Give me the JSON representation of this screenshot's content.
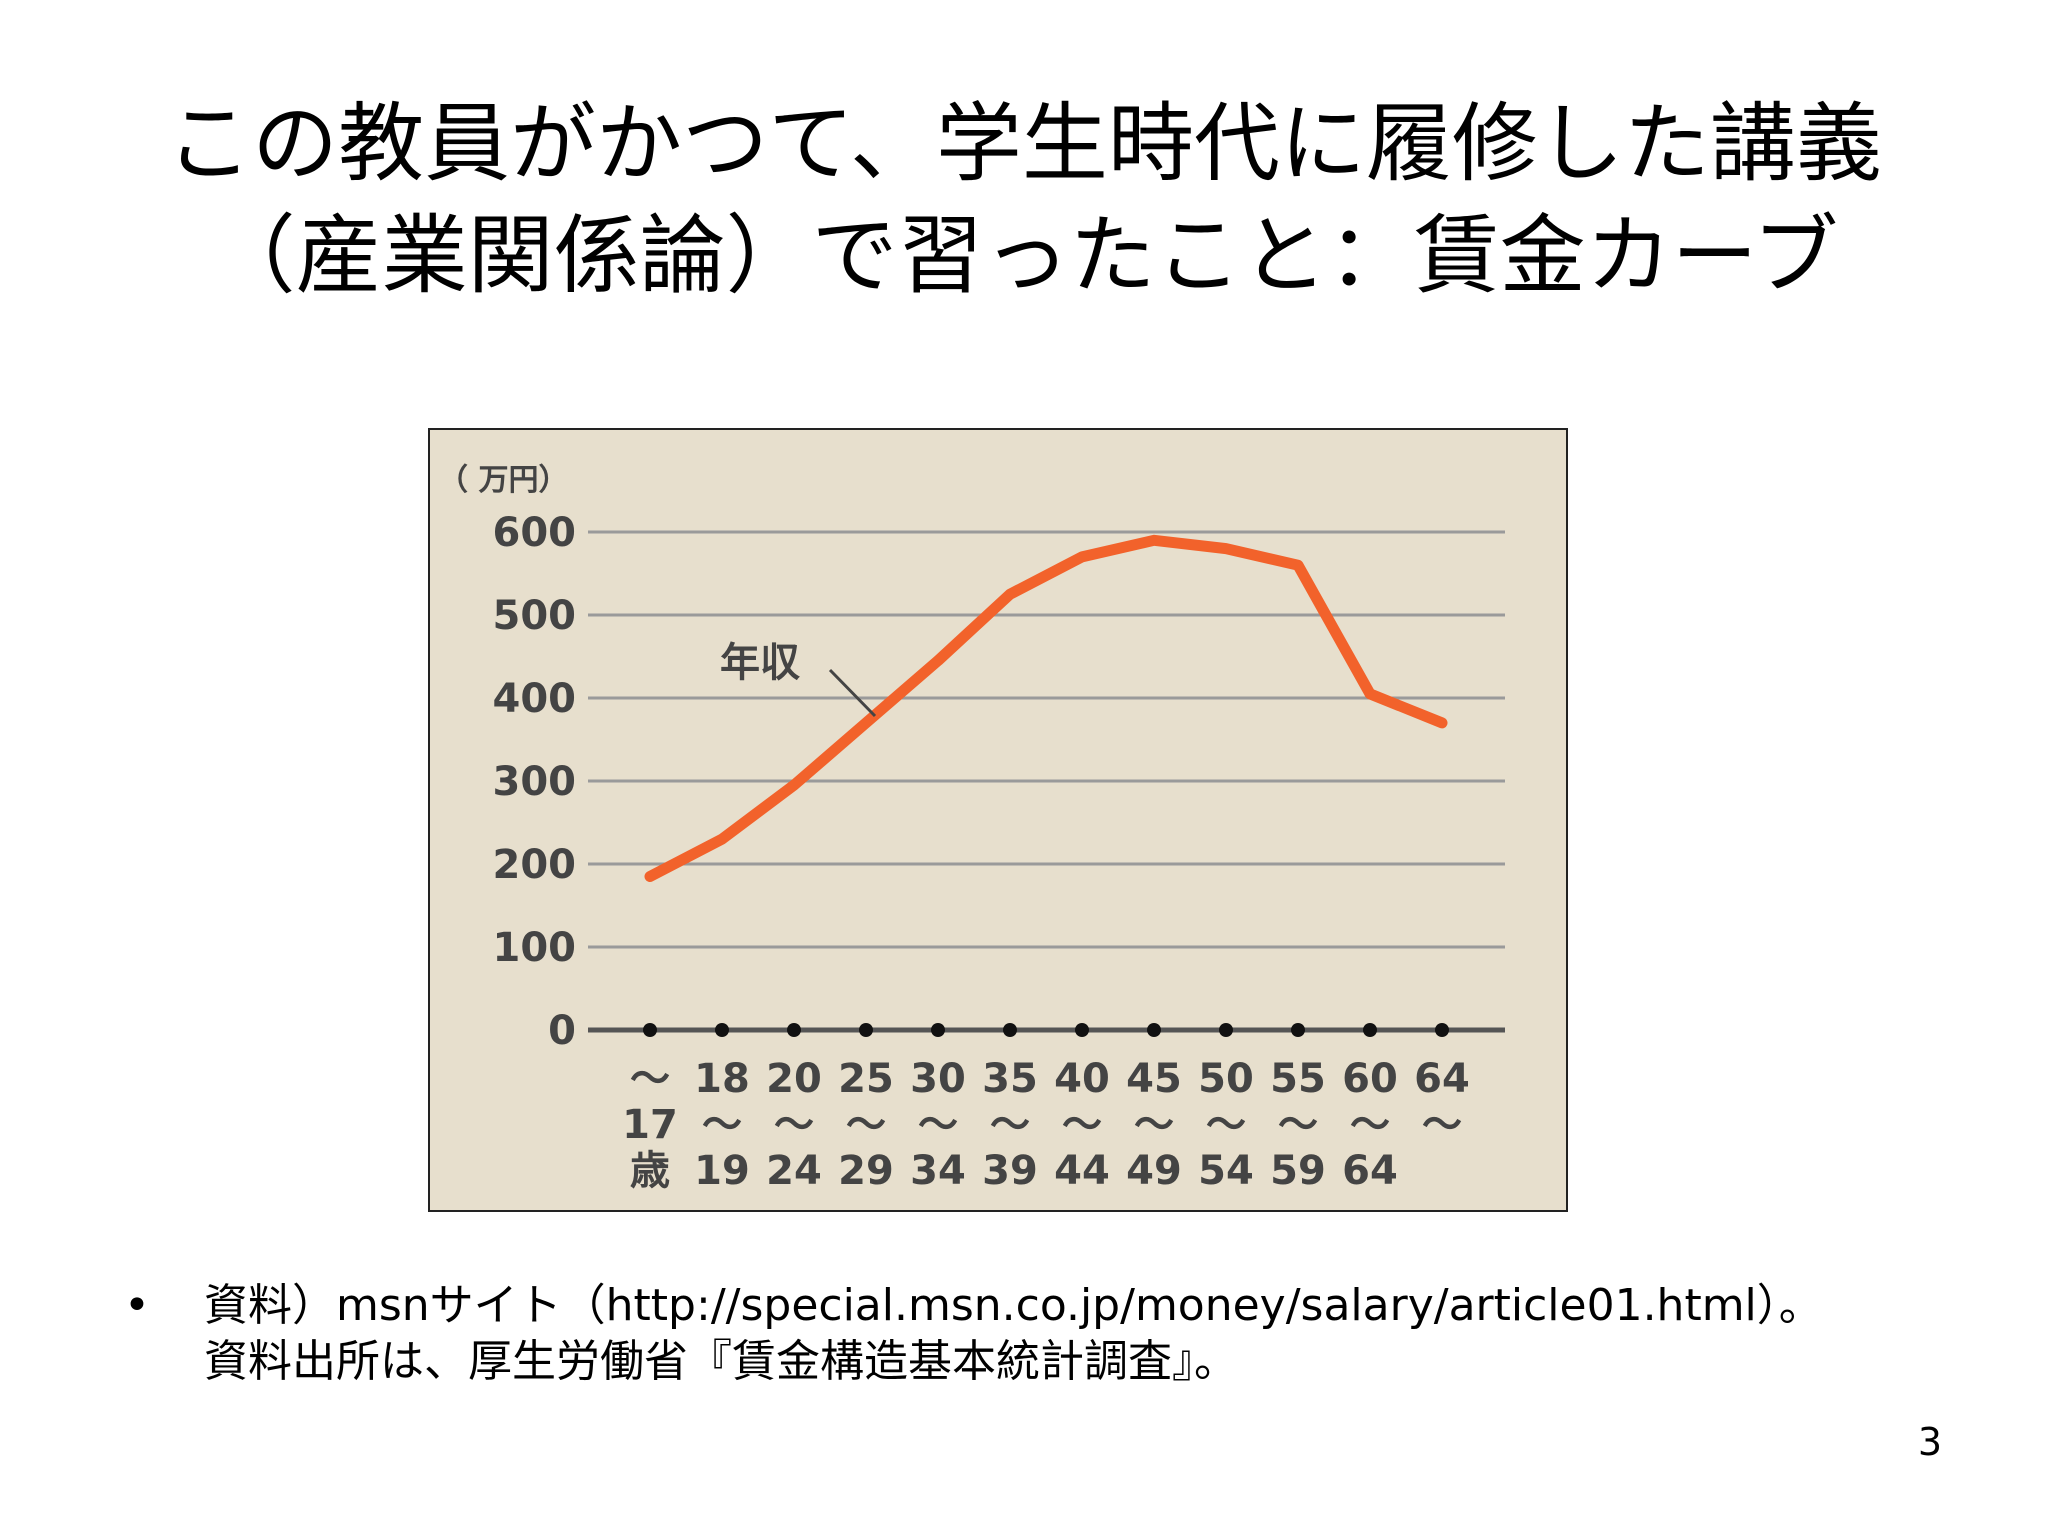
{
  "slide": {
    "title_lines": [
      "この教員がかつて、学生時代に履修した講義",
      "（産業関係論）で習ったこと：賃金カーブ"
    ],
    "bullet": "•",
    "note_lines": [
      "資料）msnサイト（http://special.msn.co.jp/money/salary/article01.html）。",
      "資料出所は、厚生労働省『賃金構造基本統計調査』。"
    ],
    "page_number": "3"
  },
  "chart_data": {
    "type": "line",
    "unit_label": "（ 万円）",
    "annotation": "年収",
    "yticks": [
      "0",
      "100",
      "200",
      "300",
      "400",
      "500",
      "600"
    ],
    "ylim": [
      0,
      600
    ],
    "grid": true,
    "categories": [
      [
        "",
        "〜",
        "17",
        "歳"
      ],
      [
        "18",
        "〜",
        "19"
      ],
      [
        "20",
        "〜",
        "24"
      ],
      [
        "25",
        "〜",
        "29"
      ],
      [
        "30",
        "〜",
        "34"
      ],
      [
        "35",
        "〜",
        "39"
      ],
      [
        "40",
        "〜",
        "44"
      ],
      [
        "45",
        "〜",
        "49"
      ],
      [
        "50",
        "〜",
        "54"
      ],
      [
        "55",
        "〜",
        "59"
      ],
      [
        "60",
        "〜",
        "64"
      ],
      [
        "64",
        "〜",
        ""
      ]
    ],
    "series": [
      {
        "name": "年収",
        "color": "#f2622b",
        "values": [
          185,
          230,
          295,
          370,
          445,
          525,
          570,
          590,
          580,
          560,
          405,
          370
        ]
      }
    ],
    "colors": {
      "background": "#e7dfcd",
      "grid": "#9a9a9a",
      "axis": "#555555",
      "dot": "#111111"
    }
  }
}
